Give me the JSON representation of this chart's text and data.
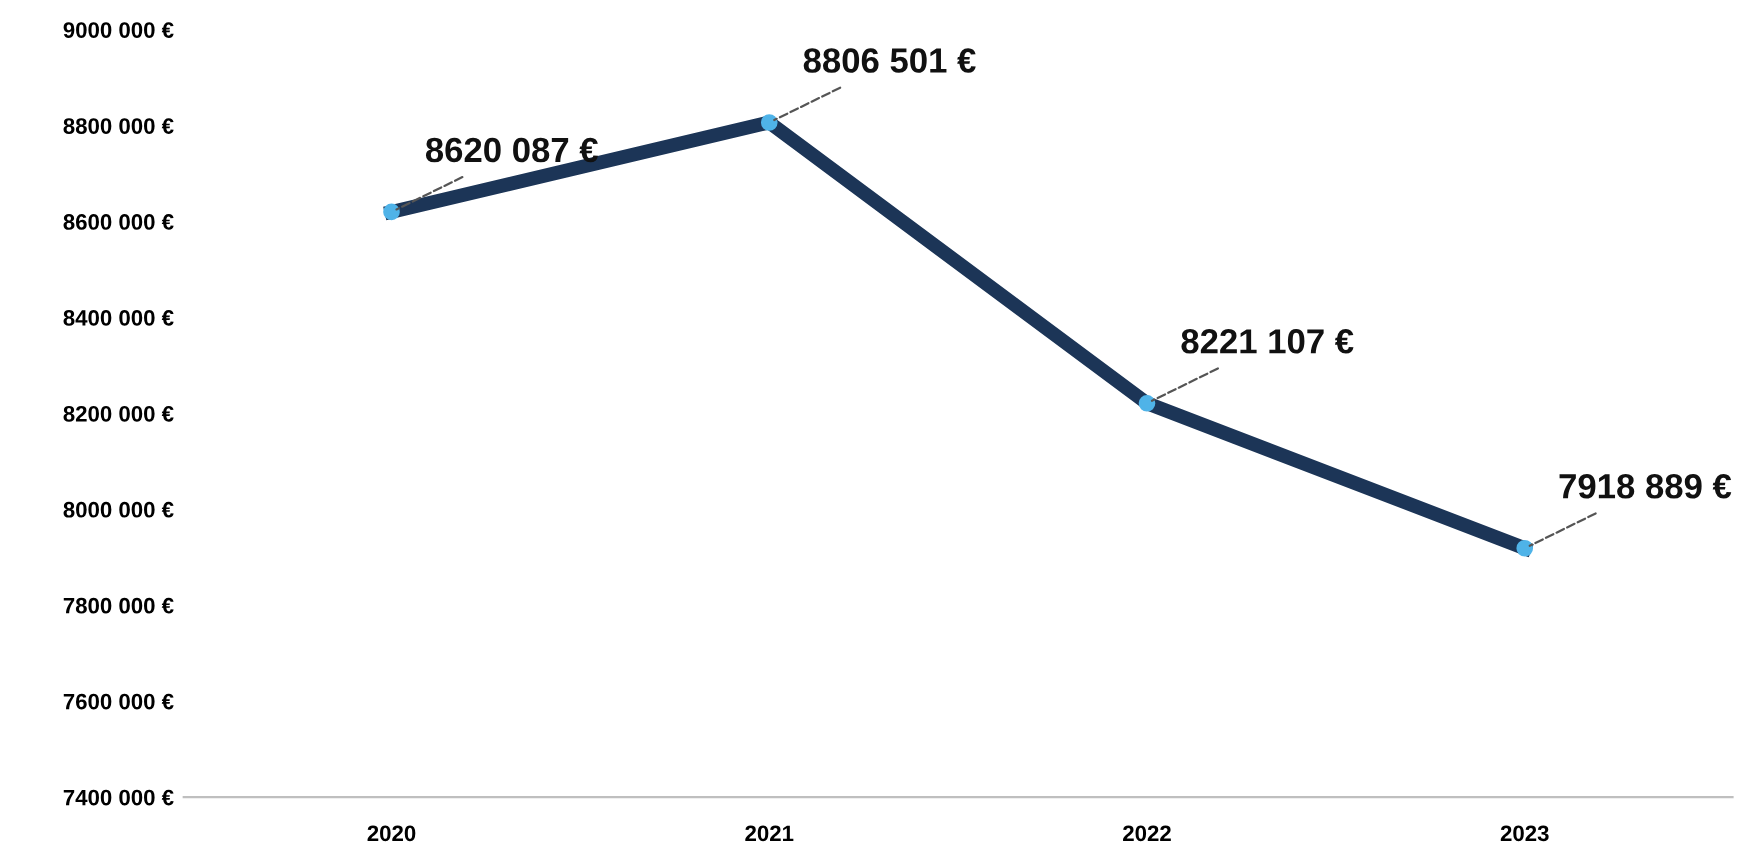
{
  "chart_data": {
    "type": "line",
    "categories": [
      "2020",
      "2021",
      "2022",
      "2023"
    ],
    "series": [
      {
        "color": "#1c3557",
        "colors": [
          "#4fb3e8",
          "#4fb3e8",
          "#4fb3e8",
          "#4fb3e8"
        ],
        "values": [
          8620087,
          8806501,
          8221107,
          7918889
        ],
        "value_labels": [
          "8620 087 €",
          "8806 501 €",
          "8221 107 €",
          "7918 889 €"
        ]
      }
    ],
    "ylim": [
      7400000,
      9000000
    ],
    "yticks": [
      {
        "value": 7400000,
        "label": "7400 000 €"
      },
      {
        "value": 7600000,
        "label": "7600 000 €"
      },
      {
        "value": 7800000,
        "label": "7800 000 €"
      },
      {
        "value": 8000000,
        "label": "8000 000 €"
      },
      {
        "value": 8200000,
        "label": "8200 000 €"
      },
      {
        "value": 8400000,
        "label": "8400 000 €"
      },
      {
        "value": 8600000,
        "label": "8600 000 €"
      },
      {
        "value": 8800000,
        "label": "8800 000 €"
      },
      {
        "value": 9000000,
        "label": "9000 000 €"
      }
    ],
    "grid": false,
    "marker": "circle",
    "line_style": "solid"
  }
}
